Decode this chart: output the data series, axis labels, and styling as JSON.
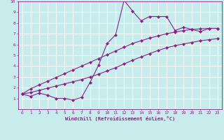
{
  "title": "",
  "xlabel": "Windchill (Refroidissement éolien,°C)",
  "ylabel": "",
  "xlim": [
    -0.5,
    23.5
  ],
  "ylim": [
    0,
    10
  ],
  "xticks": [
    0,
    1,
    2,
    3,
    4,
    5,
    6,
    7,
    8,
    9,
    10,
    11,
    12,
    13,
    14,
    15,
    16,
    17,
    18,
    19,
    20,
    21,
    22,
    23
  ],
  "yticks": [
    1,
    2,
    3,
    4,
    5,
    6,
    7,
    8,
    9,
    10
  ],
  "bg_color": "#c8ecec",
  "line_color": "#882288",
  "grid_color": "#aadddd",
  "x_data": [
    0,
    1,
    2,
    3,
    4,
    5,
    6,
    7,
    8,
    9,
    10,
    11,
    12,
    13,
    14,
    15,
    16,
    17,
    18,
    19,
    20,
    21,
    22,
    23
  ],
  "y_actual": [
    1.4,
    1.2,
    1.5,
    1.3,
    1.0,
    1.0,
    0.85,
    1.1,
    2.5,
    4.1,
    6.1,
    6.9,
    10.1,
    9.1,
    8.2,
    8.6,
    8.6,
    8.6,
    7.3,
    7.6,
    7.4,
    7.2,
    7.5,
    7.5
  ],
  "y_upper": [
    1.4,
    1.9,
    2.25,
    2.6,
    2.95,
    3.3,
    3.65,
    4.0,
    4.35,
    4.7,
    5.05,
    5.4,
    5.75,
    6.1,
    6.35,
    6.6,
    6.8,
    7.0,
    7.15,
    7.3,
    7.4,
    7.45,
    7.5,
    7.5
  ],
  "y_lower": [
    1.4,
    1.55,
    1.75,
    1.95,
    2.15,
    2.35,
    2.55,
    2.75,
    3.0,
    3.25,
    3.55,
    3.85,
    4.2,
    4.55,
    4.85,
    5.15,
    5.45,
    5.7,
    5.9,
    6.05,
    6.2,
    6.35,
    6.45,
    6.55
  ]
}
